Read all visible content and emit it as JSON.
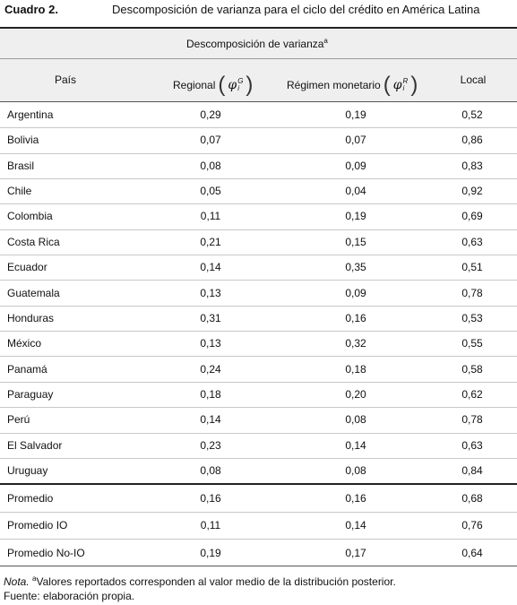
{
  "header": {
    "label": "Cuadro 2.",
    "title": "Descomposición de varianza para el ciclo del crédito en América Latina"
  },
  "table": {
    "group_header": {
      "text": "Descomposición de varianza",
      "sup": "a"
    },
    "columns": [
      {
        "text": "País"
      },
      {
        "text": "Regional",
        "open": "(",
        "symbol": "φ",
        "sup": "G",
        "sub": "i",
        "close": ")"
      },
      {
        "text": "Régimen monetario",
        "open": "(",
        "symbol": "φ",
        "sup": "R",
        "sub": "i",
        "close": ")"
      },
      {
        "text": "Local"
      }
    ],
    "rows": [
      [
        "Argentina",
        "0,29",
        "0,19",
        "0,52"
      ],
      [
        "Bolivia",
        "0,07",
        "0,07",
        "0,86"
      ],
      [
        "Brasil",
        "0,08",
        "0,09",
        "0,83"
      ],
      [
        "Chile",
        "0,05",
        "0,04",
        "0,92"
      ],
      [
        "Colombia",
        "0,11",
        "0,19",
        "0,69"
      ],
      [
        "Costa Rica",
        "0,21",
        "0,15",
        "0,63"
      ],
      [
        "Ecuador",
        "0,14",
        "0,35",
        "0,51"
      ],
      [
        "Guatemala",
        "0,13",
        "0,09",
        "0,78"
      ],
      [
        "Honduras",
        "0,31",
        "0,16",
        "0,53"
      ],
      [
        "México",
        "0,13",
        "0,32",
        "0,55"
      ],
      [
        "Panamá",
        "0,24",
        "0,18",
        "0,58"
      ],
      [
        "Paraguay",
        "0,18",
        "0,20",
        "0,62"
      ],
      [
        "Perú",
        "0,14",
        "0,08",
        "0,78"
      ],
      [
        "El Salvador",
        "0,23",
        "0,14",
        "0,63"
      ],
      [
        "Uruguay",
        "0,08",
        "0,08",
        "0,84"
      ]
    ],
    "summary_rows": [
      [
        "Promedio",
        "0,16",
        "0,16",
        "0,68"
      ],
      [
        "Promedio IO",
        "0,11",
        "0,14",
        "0,76"
      ],
      [
        "Promedio No-IO",
        "0,19",
        "0,17",
        "0,64"
      ]
    ]
  },
  "note": {
    "label": "Nota.",
    "sup": "a",
    "text": "Valores reportados corresponden al valor medio de la distribución posterior."
  },
  "source": "Fuente: elaboración propia."
}
